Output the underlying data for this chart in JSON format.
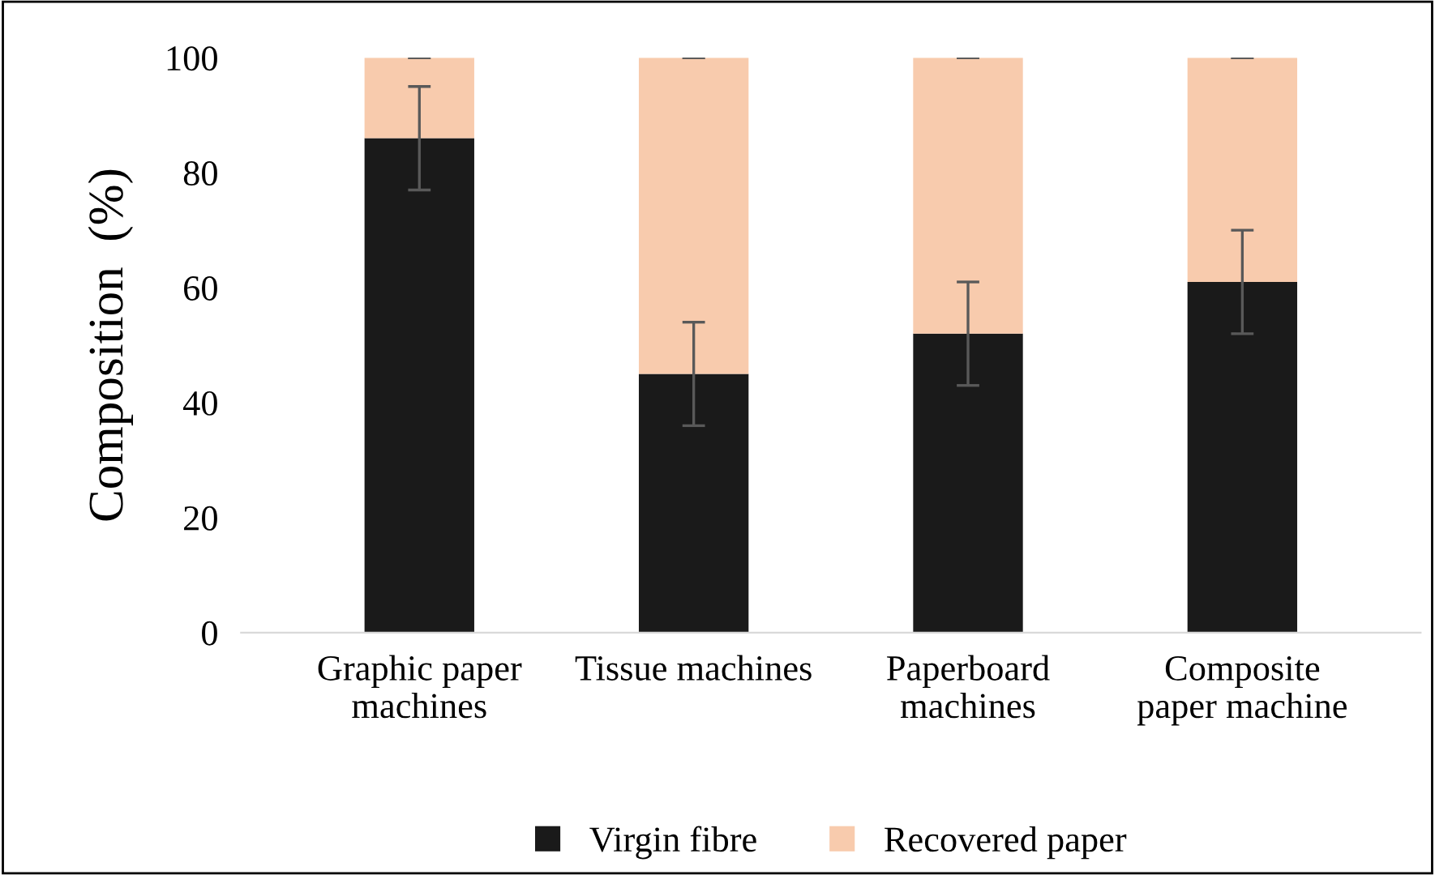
{
  "chart_data": {
    "type": "bar",
    "stacked": true,
    "ylabel": "Composition  (%)",
    "categories": [
      "Graphic paper\nmachines",
      "Tissue machines",
      "Paperboard\nmachines",
      "Composite\npaper machine"
    ],
    "series": [
      {
        "name": "Virgin fibre",
        "color": "#1a1a1a",
        "values": [
          86,
          45,
          52,
          61
        ],
        "errors": [
          9,
          9,
          9,
          9
        ]
      },
      {
        "name": "Recovered paper",
        "color": "#f8cbad",
        "values": [
          14,
          55,
          48,
          39
        ],
        "errors": [
          0,
          0,
          0,
          0
        ]
      }
    ],
    "ylim": [
      0,
      100
    ],
    "yticks": [
      0,
      20,
      40,
      60,
      80,
      100
    ],
    "grid": false,
    "legend": "bottom"
  }
}
